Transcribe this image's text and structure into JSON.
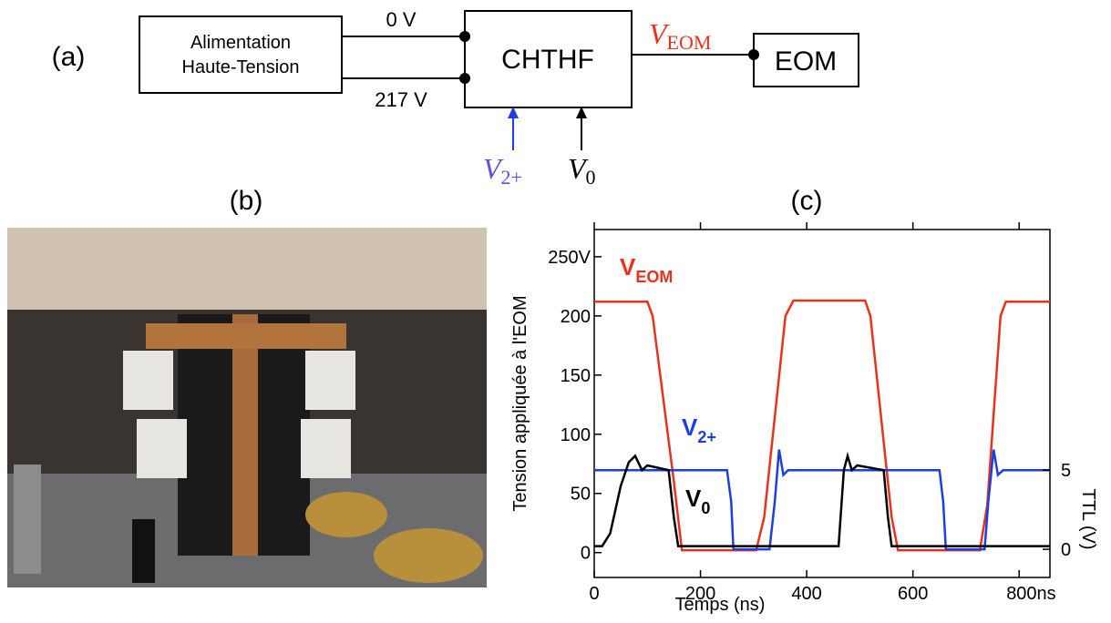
{
  "diagram": {
    "panel": "(a)",
    "supply": [
      "Alimentation",
      "Haute-Tension"
    ],
    "driver": "CHTHF",
    "modulator": "EOM",
    "wire_low": "0 V",
    "wire_high": "217 V",
    "output": {
      "main": "V",
      "sub": "EOM"
    },
    "input_a": {
      "main": "V",
      "sub": "2+"
    },
    "input_b": {
      "main": "V",
      "sub": "0"
    }
  },
  "photo": {
    "panel": "(b)"
  },
  "chart_data": {
    "type": "line",
    "panel": "(c)",
    "xlabel": "Temps (ns)",
    "ylabel": "Tension appliquée à l'EOM",
    "y2label": "TTL (V)",
    "xlim": [
      0,
      858
    ],
    "xticks": [
      0,
      200,
      400,
      600,
      {
        "value": 800,
        "label": "800ns"
      }
    ],
    "ylim": [
      -21,
      273
    ],
    "yticks": [
      0,
      50,
      100,
      150,
      200,
      {
        "value": 250,
        "label": "250V"
      }
    ],
    "y2lim": [
      -1.78,
      20.2
    ],
    "y2ticks": [
      0,
      5
    ],
    "series": [
      {
        "name": "V",
        "subscript": "EOM",
        "color": "#e8321e",
        "x": [
          0,
          100,
          110,
          150,
          165,
          250,
          305,
          320,
          360,
          375,
          510,
          520,
          560,
          572,
          726,
          740,
          765,
          775,
          858
        ],
        "values": [
          212,
          212,
          200,
          60,
          2,
          2,
          2,
          30,
          200,
          213,
          213,
          200,
          30,
          2,
          2,
          40,
          200,
          212,
          212
        ]
      },
      {
        "name": "V",
        "subscript": "2+",
        "color": "#1c3fe0",
        "axis": "y2",
        "x": [
          0,
          250,
          258,
          262,
          330,
          340,
          348,
          356,
          365,
          650,
          657,
          662,
          735,
          742,
          752,
          760,
          770,
          858
        ],
        "values": [
          5,
          5,
          3,
          0,
          0,
          3,
          6.3,
          4.7,
          5,
          5,
          3,
          0,
          0,
          3,
          6.3,
          4.7,
          5,
          5
        ]
      },
      {
        "name": "V",
        "subscript": "0",
        "color": "#000000",
        "axis": "y2",
        "x": [
          0,
          15,
          30,
          50,
          65,
          77,
          90,
          100,
          140,
          150,
          158,
          460,
          470,
          477,
          485,
          495,
          545,
          553,
          560,
          858
        ],
        "values": [
          0.2,
          0.2,
          1,
          4,
          5.5,
          5.9,
          5,
          5.3,
          5,
          2,
          0.2,
          0.2,
          5,
          5.9,
          5,
          5.3,
          5,
          2,
          0.2,
          0.2
        ]
      }
    ]
  }
}
